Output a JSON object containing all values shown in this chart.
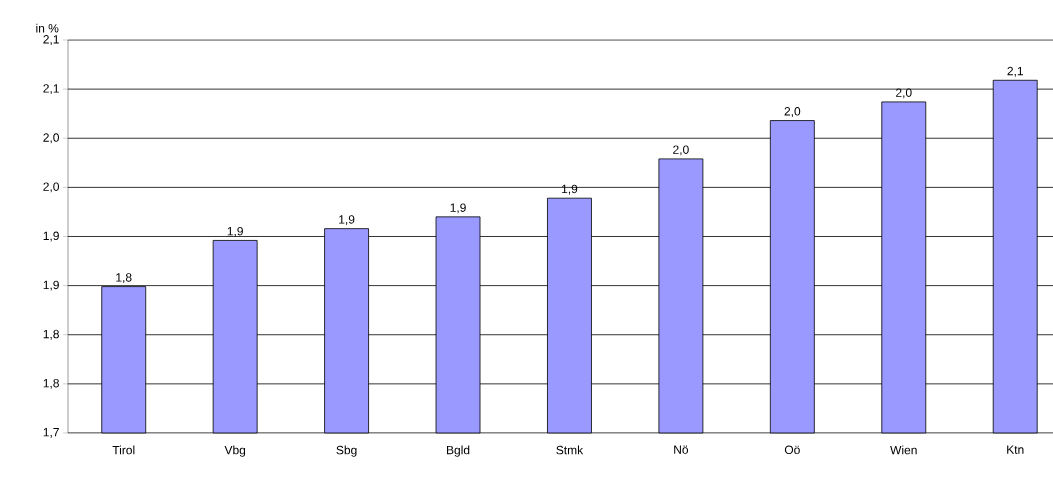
{
  "chart_data": {
    "type": "bar",
    "ylabel": "in %",
    "categories": [
      "Tirol",
      "Vbg",
      "Sbg",
      "Bgld",
      "Stmk",
      "Nö",
      "Oö",
      "Wien",
      "Ktn"
    ],
    "values": [
      1.849,
      1.896,
      1.908,
      1.92,
      1.939,
      1.979,
      2.018,
      2.037,
      2.059
    ],
    "value_labels": [
      "1,8",
      "1,9",
      "1,9",
      "1,9",
      "1,9",
      "2,0",
      "2,0",
      "2,0",
      "2,1"
    ],
    "color": "#9999ff",
    "ylim": [
      1.7,
      2.1
    ],
    "yticks": [
      {
        "value": 1.7,
        "label": "1,7"
      },
      {
        "value": 1.75,
        "label": "1,8"
      },
      {
        "value": 1.8,
        "label": "1,8"
      },
      {
        "value": 1.85,
        "label": "1,9"
      },
      {
        "value": 1.9,
        "label": "1,9"
      },
      {
        "value": 1.95,
        "label": "2,0"
      },
      {
        "value": 2.0,
        "label": "2,0"
      },
      {
        "value": 2.05,
        "label": "2,1"
      },
      {
        "value": 2.1,
        "label": "2,1"
      }
    ],
    "grid": "y"
  }
}
